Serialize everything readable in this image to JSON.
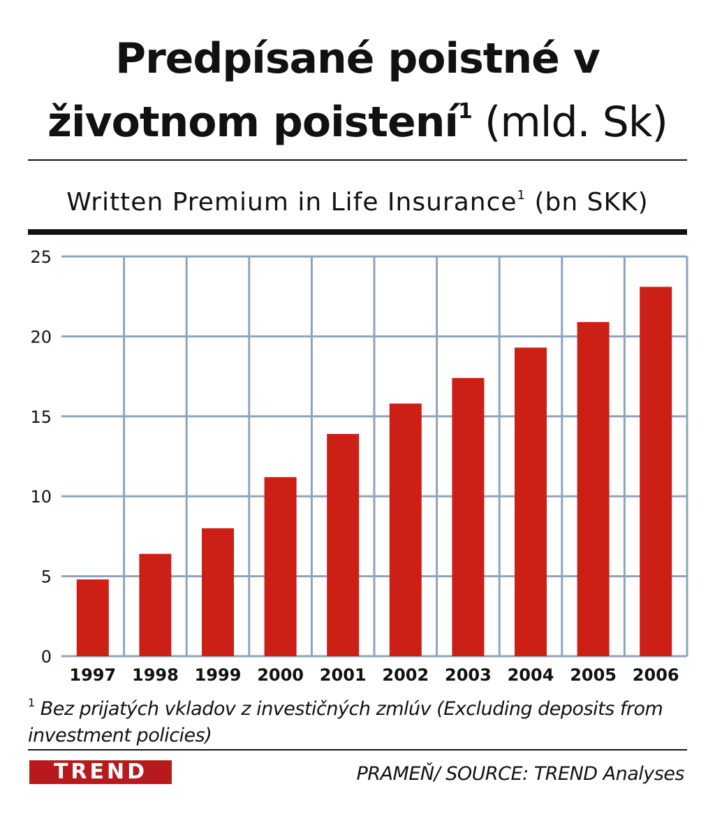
{
  "title": {
    "line1": "Predpísané poistné v",
    "line2_main": "životnom poistení",
    "line2_sup": "1",
    "line2_unit": " (mld. Sk)"
  },
  "subtitle": {
    "main": "Written Premium in Life Insurance",
    "sup": "1",
    "unit": " (bn SKK)"
  },
  "footnote": {
    "marker": "1",
    "text": " Bez prijatých vkladov z investičných zmlúv (Excluding deposits from investment policies)"
  },
  "logo_text": "TREND",
  "source": "PRAMEŇ/ SOURCE: TREND Analyses",
  "colors": {
    "bar": "#cc1f16",
    "grid": "#8fa3c0",
    "logo": "#b7191c"
  },
  "chart_data": {
    "type": "bar",
    "categories": [
      "1997",
      "1998",
      "1999",
      "2000",
      "2001",
      "2002",
      "2003",
      "2004",
      "2005",
      "2006"
    ],
    "values": [
      4.8,
      6.4,
      8.0,
      11.2,
      13.9,
      15.8,
      17.4,
      19.3,
      20.9,
      23.1
    ],
    "ylim": [
      0,
      25
    ],
    "yticks": [
      "0",
      "5",
      "10",
      "15",
      "20",
      "25"
    ],
    "grid": true,
    "xlabel": "",
    "ylabel": ""
  }
}
